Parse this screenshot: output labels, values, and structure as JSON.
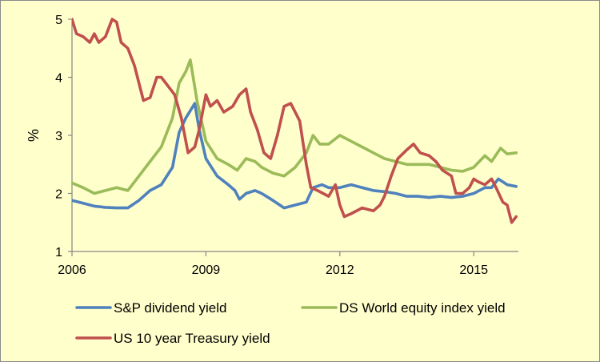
{
  "chart_data": {
    "type": "line",
    "title": "",
    "xlabel": "",
    "ylabel": "%",
    "xlim": [
      2006.0,
      2016.0
    ],
    "ylim": [
      1,
      5
    ],
    "x_ticks": [
      {
        "value": 2006,
        "label": "2006"
      },
      {
        "value": 2009,
        "label": "2009"
      },
      {
        "value": 2012,
        "label": "2012"
      },
      {
        "value": 2015,
        "label": "2015"
      }
    ],
    "y_ticks": [
      {
        "value": 1,
        "label": "1"
      },
      {
        "value": 2,
        "label": "2"
      },
      {
        "value": 3,
        "label": "3"
      },
      {
        "value": 4,
        "label": "4"
      },
      {
        "value": 5,
        "label": "5"
      }
    ],
    "grid": false,
    "legend_position": "bottom",
    "series": [
      {
        "name": "S&P dividend yield",
        "color": "#4f81bd",
        "points": [
          [
            2006.0,
            1.88
          ],
          [
            2006.25,
            1.83
          ],
          [
            2006.5,
            1.78
          ],
          [
            2006.75,
            1.76
          ],
          [
            2007.0,
            1.75
          ],
          [
            2007.25,
            1.75
          ],
          [
            2007.5,
            1.88
          ],
          [
            2007.75,
            2.05
          ],
          [
            2008.0,
            2.15
          ],
          [
            2008.25,
            2.45
          ],
          [
            2008.4,
            3.05
          ],
          [
            2008.55,
            3.3
          ],
          [
            2008.75,
            3.55
          ],
          [
            2008.85,
            3.1
          ],
          [
            2009.0,
            2.6
          ],
          [
            2009.25,
            2.3
          ],
          [
            2009.5,
            2.15
          ],
          [
            2009.65,
            2.05
          ],
          [
            2009.75,
            1.9
          ],
          [
            2009.9,
            2.0
          ],
          [
            2010.1,
            2.05
          ],
          [
            2010.25,
            2.0
          ],
          [
            2010.5,
            1.88
          ],
          [
            2010.75,
            1.75
          ],
          [
            2011.0,
            1.8
          ],
          [
            2011.25,
            1.85
          ],
          [
            2011.4,
            2.1
          ],
          [
            2011.6,
            2.15
          ],
          [
            2011.75,
            2.1
          ],
          [
            2012.0,
            2.1
          ],
          [
            2012.25,
            2.15
          ],
          [
            2012.5,
            2.1
          ],
          [
            2012.75,
            2.05
          ],
          [
            2013.0,
            2.03
          ],
          [
            2013.25,
            2.0
          ],
          [
            2013.5,
            1.95
          ],
          [
            2013.75,
            1.95
          ],
          [
            2014.0,
            1.93
          ],
          [
            2014.25,
            1.95
          ],
          [
            2014.5,
            1.93
          ],
          [
            2014.75,
            1.95
          ],
          [
            2015.0,
            2.0
          ],
          [
            2015.25,
            2.1
          ],
          [
            2015.4,
            2.1
          ],
          [
            2015.55,
            2.25
          ],
          [
            2015.75,
            2.15
          ],
          [
            2015.95,
            2.12
          ]
        ]
      },
      {
        "name": "DS World equity index yield",
        "color": "#9bbb59",
        "points": [
          [
            2006.0,
            2.18
          ],
          [
            2006.25,
            2.1
          ],
          [
            2006.5,
            2.0
          ],
          [
            2006.75,
            2.05
          ],
          [
            2007.0,
            2.1
          ],
          [
            2007.25,
            2.05
          ],
          [
            2007.5,
            2.3
          ],
          [
            2007.75,
            2.55
          ],
          [
            2008.0,
            2.8
          ],
          [
            2008.25,
            3.3
          ],
          [
            2008.4,
            3.9
          ],
          [
            2008.55,
            4.1
          ],
          [
            2008.65,
            4.3
          ],
          [
            2008.8,
            3.6
          ],
          [
            2009.0,
            2.9
          ],
          [
            2009.25,
            2.6
          ],
          [
            2009.5,
            2.5
          ],
          [
            2009.7,
            2.4
          ],
          [
            2009.9,
            2.6
          ],
          [
            2010.1,
            2.55
          ],
          [
            2010.25,
            2.45
          ],
          [
            2010.5,
            2.35
          ],
          [
            2010.75,
            2.3
          ],
          [
            2011.0,
            2.45
          ],
          [
            2011.25,
            2.7
          ],
          [
            2011.4,
            3.0
          ],
          [
            2011.55,
            2.85
          ],
          [
            2011.75,
            2.85
          ],
          [
            2012.0,
            3.0
          ],
          [
            2012.25,
            2.9
          ],
          [
            2012.5,
            2.8
          ],
          [
            2012.75,
            2.7
          ],
          [
            2013.0,
            2.6
          ],
          [
            2013.25,
            2.55
          ],
          [
            2013.5,
            2.5
          ],
          [
            2013.75,
            2.5
          ],
          [
            2014.0,
            2.5
          ],
          [
            2014.25,
            2.45
          ],
          [
            2014.5,
            2.4
          ],
          [
            2014.75,
            2.38
          ],
          [
            2015.0,
            2.45
          ],
          [
            2015.25,
            2.65
          ],
          [
            2015.4,
            2.55
          ],
          [
            2015.6,
            2.78
          ],
          [
            2015.75,
            2.68
          ],
          [
            2015.95,
            2.7
          ]
        ]
      },
      {
        "name": "US 10 year Treasury yield",
        "color": "#c0504d",
        "points": [
          [
            2006.0,
            5.0
          ],
          [
            2006.1,
            4.75
          ],
          [
            2006.25,
            4.7
          ],
          [
            2006.4,
            4.6
          ],
          [
            2006.5,
            4.75
          ],
          [
            2006.6,
            4.6
          ],
          [
            2006.75,
            4.7
          ],
          [
            2006.9,
            5.0
          ],
          [
            2007.0,
            4.95
          ],
          [
            2007.1,
            4.6
          ],
          [
            2007.25,
            4.5
          ],
          [
            2007.4,
            4.2
          ],
          [
            2007.5,
            3.9
          ],
          [
            2007.6,
            3.6
          ],
          [
            2007.75,
            3.65
          ],
          [
            2007.9,
            4.0
          ],
          [
            2008.0,
            4.0
          ],
          [
            2008.15,
            3.85
          ],
          [
            2008.3,
            3.7
          ],
          [
            2008.45,
            3.3
          ],
          [
            2008.6,
            2.7
          ],
          [
            2008.75,
            2.8
          ],
          [
            2008.85,
            3.1
          ],
          [
            2009.0,
            3.7
          ],
          [
            2009.1,
            3.5
          ],
          [
            2009.25,
            3.6
          ],
          [
            2009.4,
            3.4
          ],
          [
            2009.6,
            3.5
          ],
          [
            2009.75,
            3.7
          ],
          [
            2009.9,
            3.8
          ],
          [
            2010.0,
            3.4
          ],
          [
            2010.15,
            3.1
          ],
          [
            2010.3,
            2.7
          ],
          [
            2010.45,
            2.6
          ],
          [
            2010.6,
            3.0
          ],
          [
            2010.75,
            3.5
          ],
          [
            2010.9,
            3.55
          ],
          [
            2011.0,
            3.4
          ],
          [
            2011.1,
            3.25
          ],
          [
            2011.25,
            2.5
          ],
          [
            2011.35,
            2.1
          ],
          [
            2011.5,
            2.05
          ],
          [
            2011.75,
            1.95
          ],
          [
            2011.9,
            2.15
          ],
          [
            2012.0,
            1.8
          ],
          [
            2012.1,
            1.6
          ],
          [
            2012.25,
            1.65
          ],
          [
            2012.5,
            1.75
          ],
          [
            2012.75,
            1.7
          ],
          [
            2012.9,
            1.8
          ],
          [
            2013.0,
            1.95
          ],
          [
            2013.15,
            2.3
          ],
          [
            2013.3,
            2.6
          ],
          [
            2013.5,
            2.75
          ],
          [
            2013.65,
            2.85
          ],
          [
            2013.8,
            2.7
          ],
          [
            2014.0,
            2.65
          ],
          [
            2014.15,
            2.55
          ],
          [
            2014.3,
            2.4
          ],
          [
            2014.5,
            2.3
          ],
          [
            2014.6,
            2.0
          ],
          [
            2014.75,
            2.0
          ],
          [
            2014.9,
            2.1
          ],
          [
            2015.0,
            2.25
          ],
          [
            2015.1,
            2.2
          ],
          [
            2015.25,
            2.15
          ],
          [
            2015.4,
            2.25
          ],
          [
            2015.5,
            2.1
          ],
          [
            2015.65,
            1.85
          ],
          [
            2015.75,
            1.8
          ],
          [
            2015.85,
            1.5
          ],
          [
            2015.95,
            1.6
          ]
        ]
      }
    ]
  }
}
